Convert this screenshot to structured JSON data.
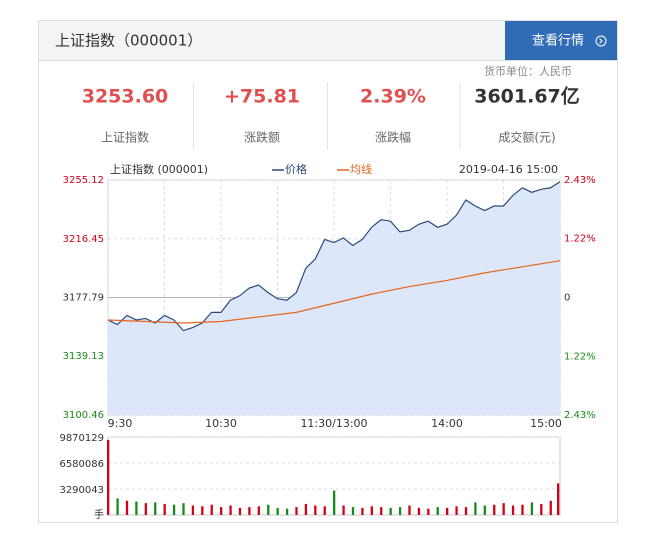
{
  "header": {
    "title": "上证指数（000001）",
    "button": "查看行情",
    "currency_note": "货币单位：人民币"
  },
  "stats": [
    {
      "value": "3253.60",
      "label": "上证指数"
    },
    {
      "value": "+75.81",
      "label": "涨跌额"
    },
    {
      "value": "2.39%",
      "label": "涨跌幅"
    },
    {
      "value": "3601.67亿",
      "label": "成交额(元)"
    }
  ],
  "chart_data": {
    "type": "line",
    "title": "上证指数 (000001)",
    "date": "2019-04-16 15:00",
    "up_color": "#d0021b",
    "down_color": "#1a8a1a",
    "x": [
      0,
      5,
      10,
      15,
      20,
      25,
      30,
      35,
      40,
      45,
      50,
      55,
      60,
      65,
      70,
      75,
      80,
      85,
      90,
      95,
      100,
      105,
      110,
      115,
      120,
      125,
      130,
      135,
      140,
      145,
      150,
      155,
      160,
      165,
      170,
      175,
      180,
      185,
      190,
      195,
      200,
      205,
      210,
      215,
      220,
      225,
      230,
      235,
      240
    ],
    "series": [
      {
        "name": "价格",
        "color": "#2b4a7a",
        "values": [
          3163,
          3160,
          3166,
          3163,
          3164,
          3161,
          3166,
          3163,
          3156,
          3158,
          3161,
          3168,
          3168,
          3176,
          3179,
          3184,
          3186,
          3181,
          3177,
          3176,
          3181,
          3197,
          3203,
          3216,
          3214,
          3217,
          3212,
          3216,
          3224,
          3229,
          3228,
          3221,
          3222,
          3226,
          3228,
          3224,
          3226,
          3232,
          3242,
          3238,
          3235,
          3238,
          3238,
          3245,
          3250,
          3247,
          3249,
          3250,
          3254
        ]
      },
      {
        "name": "均线",
        "color": "#e8641e",
        "x": [
          0,
          20,
          40,
          60,
          80,
          100,
          120,
          140,
          160,
          180,
          200,
          220,
          240
        ],
        "values": [
          3163,
          3162,
          3161,
          3162,
          3165,
          3168,
          3174,
          3180,
          3185,
          3189,
          3194,
          3198,
          3202
        ]
      }
    ],
    "xlim": [
      0,
      240
    ],
    "xticks": [
      {
        "value": 0,
        "label": "9:30"
      },
      {
        "value": 60,
        "label": "10:30"
      },
      {
        "value": 120,
        "label": "11:30/13:00"
      },
      {
        "value": 180,
        "label": "14:00"
      },
      {
        "value": 240,
        "label": "15:00"
      }
    ],
    "xgrid": [
      30,
      90,
      150,
      210
    ],
    "ylim": [
      3100.46,
      3255.12
    ],
    "yticks": [
      3100.46,
      3139.13,
      3177.79,
      3216.45,
      3255.12
    ],
    "y2lim": [
      -2.43,
      2.43
    ],
    "y2ticks": [
      {
        "value": -2.43,
        "label": "2.43%"
      },
      {
        "value": -1.22,
        "label": "1.22%"
      },
      0,
      {
        "value": 1.22,
        "label": "1.22%"
      },
      {
        "value": 2.43,
        "label": "2.43%"
      }
    ],
    "volume": {
      "values": [
        9500000,
        2100000,
        1800000,
        1700000,
        1500000,
        1600000,
        1400000,
        1300000,
        1500000,
        1200000,
        1100000,
        1300000,
        1000000,
        1200000,
        900000,
        1000000,
        1100000,
        1300000,
        900000,
        800000,
        1000000,
        1400000,
        1200000,
        1100000,
        3100000,
        1200000,
        1000000,
        900000,
        1100000,
        1000000,
        900000,
        1000000,
        1200000,
        900000,
        800000,
        1000000,
        900000,
        1100000,
        1000000,
        1600000,
        1200000,
        1300000,
        1500000,
        1200000,
        1300000,
        1600000,
        1400000,
        1800000,
        4000000
      ],
      "ylim": [
        0,
        9870129
      ],
      "yticks": [
        3290043,
        6580086,
        9870129
      ],
      "unit": "手"
    }
  }
}
